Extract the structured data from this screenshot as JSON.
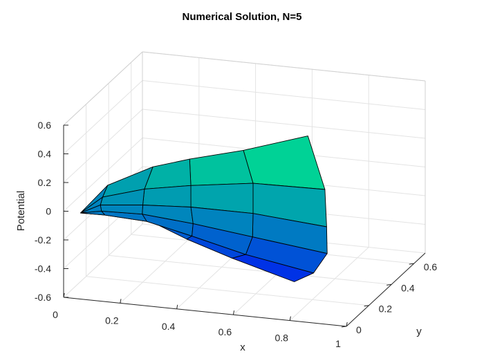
{
  "chart_data": {
    "type": "surface",
    "title": "Numerical Solution, N=5",
    "xlabel": "x",
    "ylabel": "y",
    "zlabel": "Potential",
    "xlim": [
      0,
      1
    ],
    "ylim": [
      0,
      0.7
    ],
    "zlim": [
      -0.6,
      0.6
    ],
    "x_ticks": [
      "0",
      "0.2",
      "0.4",
      "0.6",
      "0.8",
      "1"
    ],
    "y_ticks": [
      "0",
      "0.2",
      "0.4",
      "0.6"
    ],
    "z_ticks": [
      "-0.6",
      "-0.4",
      "-0.2",
      "0",
      "0.2",
      "0.4",
      "0.6"
    ],
    "grid": true,
    "colormap": "winter",
    "mesh_size": [
      6,
      6
    ],
    "surface": {
      "rows": [
        [
          {
            "x": 0.06,
            "y": 0.0,
            "z": 0.0
          },
          {
            "x": 0.06,
            "y": 0.0,
            "z": 0.0
          },
          {
            "x": 0.06,
            "y": 0.0,
            "z": 0.0
          },
          {
            "x": 0.06,
            "y": 0.0,
            "z": 0.0
          },
          {
            "x": 0.06,
            "y": 0.0,
            "z": 0.0
          },
          {
            "x": 0.06,
            "y": 0.0,
            "z": 0.0
          }
        ],
        [
          {
            "x": 0.12,
            "y": 0.09,
            "z": -0.06
          },
          {
            "x": 0.13,
            "y": 0.04,
            "z": -0.03
          },
          {
            "x": 0.13,
            "y": 0.01,
            "z": 0.02
          },
          {
            "x": 0.13,
            "y": 0.0,
            "z": 0.07
          },
          {
            "x": 0.13,
            "y": 0.02,
            "z": 0.11
          },
          {
            "x": 0.12,
            "y": 0.09,
            "z": 0.14
          }
        ],
        [
          {
            "x": 0.25,
            "y": 0.14,
            "z": -0.12
          },
          {
            "x": 0.27,
            "y": 0.06,
            "z": -0.06
          },
          {
            "x": 0.27,
            "y": 0.02,
            "z": 0.02
          },
          {
            "x": 0.28,
            "y": 0.0,
            "z": 0.1
          },
          {
            "x": 0.27,
            "y": 0.04,
            "z": 0.18
          },
          {
            "x": 0.26,
            "y": 0.14,
            "z": 0.26
          }
        ],
        [
          {
            "x": 0.38,
            "y": 0.14,
            "z": -0.22
          },
          {
            "x": 0.43,
            "y": 0.06,
            "z": -0.13
          },
          {
            "x": 0.45,
            "y": 0.02,
            "z": -0.01
          },
          {
            "x": 0.45,
            "y": 0.0,
            "z": 0.12
          },
          {
            "x": 0.43,
            "y": 0.05,
            "z": 0.23
          },
          {
            "x": 0.39,
            "y": 0.14,
            "z": 0.34
          }
        ],
        [
          {
            "x": 0.54,
            "y": 0.14,
            "z": -0.32
          },
          {
            "x": 0.62,
            "y": 0.06,
            "z": -0.22
          },
          {
            "x": 0.66,
            "y": 0.02,
            "z": -0.06
          },
          {
            "x": 0.67,
            "y": 0.0,
            "z": 0.12
          },
          {
            "x": 0.65,
            "y": 0.05,
            "z": 0.29
          },
          {
            "x": 0.58,
            "y": 0.14,
            "z": 0.44
          }
        ],
        [
          {
            "x": 0.76,
            "y": 0.14,
            "z": -0.44
          },
          {
            "x": 0.86,
            "y": 0.06,
            "z": -0.3
          },
          {
            "x": 0.92,
            "y": 0.03,
            "z": -0.13
          },
          {
            "x": 0.93,
            "y": 0.0,
            "z": 0.08
          },
          {
            "x": 0.9,
            "y": 0.06,
            "z": 0.29
          },
          {
            "x": 0.8,
            "y": 0.16,
            "z": 0.57
          }
        ]
      ]
    }
  }
}
